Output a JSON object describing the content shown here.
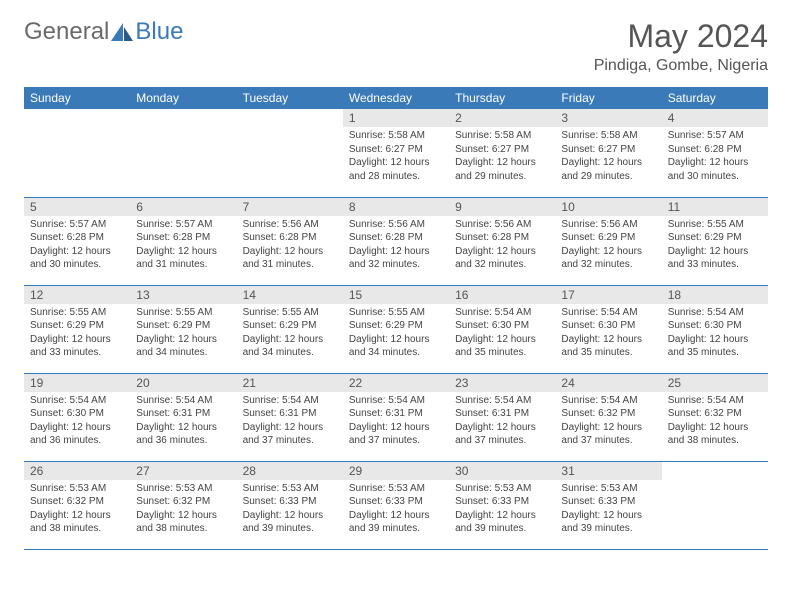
{
  "brand": {
    "part1": "General",
    "part2": "Blue"
  },
  "title": "May 2024",
  "location": "Pindiga, Gombe, Nigeria",
  "colors": {
    "header_bg": "#3a7ab8",
    "header_text": "#ffffff",
    "daynum_bg": "#e8e8e8",
    "border": "#3a7ab8",
    "brand_gray": "#6a6a6a",
    "brand_blue": "#3a7ab8"
  },
  "day_names": [
    "Sunday",
    "Monday",
    "Tuesday",
    "Wednesday",
    "Thursday",
    "Friday",
    "Saturday"
  ],
  "weeks": [
    [
      null,
      null,
      null,
      {
        "n": "1",
        "sr": "5:58 AM",
        "ss": "6:27 PM",
        "dl": "12 hours and 28 minutes."
      },
      {
        "n": "2",
        "sr": "5:58 AM",
        "ss": "6:27 PM",
        "dl": "12 hours and 29 minutes."
      },
      {
        "n": "3",
        "sr": "5:58 AM",
        "ss": "6:27 PM",
        "dl": "12 hours and 29 minutes."
      },
      {
        "n": "4",
        "sr": "5:57 AM",
        "ss": "6:28 PM",
        "dl": "12 hours and 30 minutes."
      }
    ],
    [
      {
        "n": "5",
        "sr": "5:57 AM",
        "ss": "6:28 PM",
        "dl": "12 hours and 30 minutes."
      },
      {
        "n": "6",
        "sr": "5:57 AM",
        "ss": "6:28 PM",
        "dl": "12 hours and 31 minutes."
      },
      {
        "n": "7",
        "sr": "5:56 AM",
        "ss": "6:28 PM",
        "dl": "12 hours and 31 minutes."
      },
      {
        "n": "8",
        "sr": "5:56 AM",
        "ss": "6:28 PM",
        "dl": "12 hours and 32 minutes."
      },
      {
        "n": "9",
        "sr": "5:56 AM",
        "ss": "6:28 PM",
        "dl": "12 hours and 32 minutes."
      },
      {
        "n": "10",
        "sr": "5:56 AM",
        "ss": "6:29 PM",
        "dl": "12 hours and 32 minutes."
      },
      {
        "n": "11",
        "sr": "5:55 AM",
        "ss": "6:29 PM",
        "dl": "12 hours and 33 minutes."
      }
    ],
    [
      {
        "n": "12",
        "sr": "5:55 AM",
        "ss": "6:29 PM",
        "dl": "12 hours and 33 minutes."
      },
      {
        "n": "13",
        "sr": "5:55 AM",
        "ss": "6:29 PM",
        "dl": "12 hours and 34 minutes."
      },
      {
        "n": "14",
        "sr": "5:55 AM",
        "ss": "6:29 PM",
        "dl": "12 hours and 34 minutes."
      },
      {
        "n": "15",
        "sr": "5:55 AM",
        "ss": "6:29 PM",
        "dl": "12 hours and 34 minutes."
      },
      {
        "n": "16",
        "sr": "5:54 AM",
        "ss": "6:30 PM",
        "dl": "12 hours and 35 minutes."
      },
      {
        "n": "17",
        "sr": "5:54 AM",
        "ss": "6:30 PM",
        "dl": "12 hours and 35 minutes."
      },
      {
        "n": "18",
        "sr": "5:54 AM",
        "ss": "6:30 PM",
        "dl": "12 hours and 35 minutes."
      }
    ],
    [
      {
        "n": "19",
        "sr": "5:54 AM",
        "ss": "6:30 PM",
        "dl": "12 hours and 36 minutes."
      },
      {
        "n": "20",
        "sr": "5:54 AM",
        "ss": "6:31 PM",
        "dl": "12 hours and 36 minutes."
      },
      {
        "n": "21",
        "sr": "5:54 AM",
        "ss": "6:31 PM",
        "dl": "12 hours and 37 minutes."
      },
      {
        "n": "22",
        "sr": "5:54 AM",
        "ss": "6:31 PM",
        "dl": "12 hours and 37 minutes."
      },
      {
        "n": "23",
        "sr": "5:54 AM",
        "ss": "6:31 PM",
        "dl": "12 hours and 37 minutes."
      },
      {
        "n": "24",
        "sr": "5:54 AM",
        "ss": "6:32 PM",
        "dl": "12 hours and 37 minutes."
      },
      {
        "n": "25",
        "sr": "5:54 AM",
        "ss": "6:32 PM",
        "dl": "12 hours and 38 minutes."
      }
    ],
    [
      {
        "n": "26",
        "sr": "5:53 AM",
        "ss": "6:32 PM",
        "dl": "12 hours and 38 minutes."
      },
      {
        "n": "27",
        "sr": "5:53 AM",
        "ss": "6:32 PM",
        "dl": "12 hours and 38 minutes."
      },
      {
        "n": "28",
        "sr": "5:53 AM",
        "ss": "6:33 PM",
        "dl": "12 hours and 39 minutes."
      },
      {
        "n": "29",
        "sr": "5:53 AM",
        "ss": "6:33 PM",
        "dl": "12 hours and 39 minutes."
      },
      {
        "n": "30",
        "sr": "5:53 AM",
        "ss": "6:33 PM",
        "dl": "12 hours and 39 minutes."
      },
      {
        "n": "31",
        "sr": "5:53 AM",
        "ss": "6:33 PM",
        "dl": "12 hours and 39 minutes."
      },
      null
    ]
  ],
  "labels": {
    "sunrise": "Sunrise:",
    "sunset": "Sunset:",
    "daylight": "Daylight:"
  }
}
